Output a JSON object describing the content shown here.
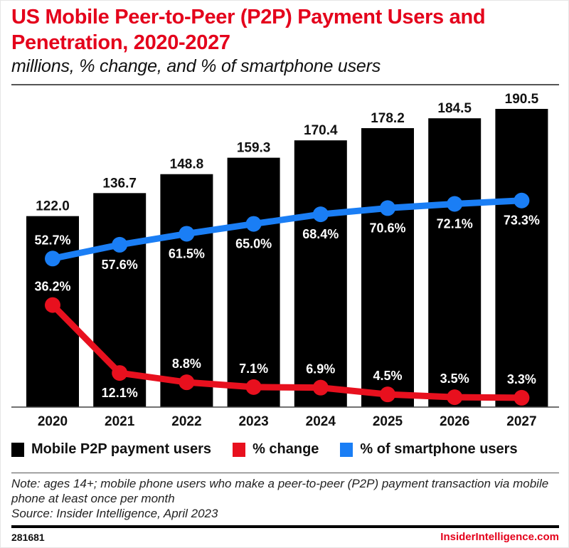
{
  "header": {
    "title": "US Mobile Peer-to-Peer (P2P) Payment Users and Penetration, 2020-2027",
    "subtitle": "millions, % change, and % of smartphone users"
  },
  "legend": [
    {
      "label": "Mobile P2P payment users",
      "color": "#000000"
    },
    {
      "label": "% change",
      "color": "#e8101e"
    },
    {
      "label": "% of smartphone users",
      "color": "#1a7ef5"
    }
  ],
  "footer": {
    "note": "Note: ages 14+; mobile phone users who make a peer-to-peer (P2P) payment transaction via mobile phone at least once per month",
    "source": "Source: Insider Intelligence, April 2023",
    "chart_id": "281681",
    "brand": "InsiderIntelligence.com"
  },
  "chart_data": {
    "type": "bar",
    "title": "US Mobile Peer-to-Peer (P2P) Payment Users and Penetration, 2020-2027",
    "subtitle": "millions, % change, and % of smartphone users",
    "xlabel": "",
    "ylabel": "",
    "grid": false,
    "legend_position": "bottom",
    "categories": [
      "2020",
      "2021",
      "2022",
      "2023",
      "2024",
      "2025",
      "2026",
      "2027"
    ],
    "series": [
      {
        "name": "Mobile P2P payment users",
        "type": "bar",
        "unit": "millions",
        "color": "#000000",
        "values": [
          122.0,
          136.7,
          148.8,
          159.3,
          170.4,
          178.2,
          184.5,
          190.5
        ],
        "labels": [
          "122.0",
          "136.7",
          "148.8",
          "159.3",
          "170.4",
          "178.2",
          "184.5",
          "190.5"
        ],
        "ylim": [
          0,
          190.5
        ]
      },
      {
        "name": "% change",
        "type": "line",
        "unit": "%",
        "color": "#e8101e",
        "values": [
          36.2,
          12.1,
          8.8,
          7.1,
          6.9,
          4.5,
          3.5,
          3.3
        ],
        "labels": [
          "36.2%",
          "12.1%",
          "8.8%",
          "7.1%",
          "6.9%",
          "4.5%",
          "3.5%",
          "3.3%"
        ],
        "label_side": [
          "above",
          "below",
          "above",
          "above",
          "above",
          "above",
          "above",
          "above"
        ],
        "ylim": [
          0,
          106
        ]
      },
      {
        "name": "% of smartphone users",
        "type": "line",
        "unit": "%",
        "color": "#1a7ef5",
        "values": [
          52.7,
          57.6,
          61.5,
          65.0,
          68.4,
          70.6,
          72.1,
          73.3
        ],
        "labels": [
          "52.7%",
          "57.6%",
          "61.5%",
          "65.0%",
          "68.4%",
          "70.6%",
          "72.1%",
          "73.3%"
        ],
        "label_side": [
          "above",
          "below",
          "below",
          "below",
          "below",
          "below",
          "below",
          "below"
        ],
        "ylim": [
          0,
          106
        ]
      }
    ]
  }
}
